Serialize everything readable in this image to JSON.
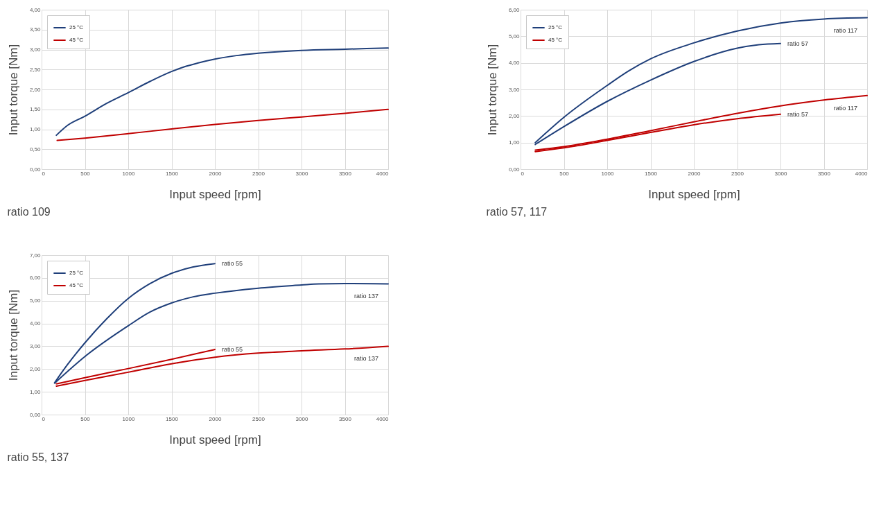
{
  "chart_data": [
    {
      "type": "line",
      "title": "ratio 109",
      "xlabel": "Input speed [rpm]",
      "ylabel": "Input torque [Nm]",
      "legend": "top left",
      "grid": true,
      "xlim": [
        0,
        4000
      ],
      "xticks": [
        0,
        500,
        1000,
        1500,
        2000,
        2500,
        3000,
        3500,
        4000
      ],
      "ylim": [
        0,
        4
      ],
      "yticks": [
        {
          "value": 0,
          "label": "0,00"
        },
        {
          "value": 0.5,
          "label": "0,50"
        },
        {
          "value": 1,
          "label": "1,00"
        },
        {
          "value": 1.5,
          "label": "1,50"
        },
        {
          "value": 2,
          "label": "2,00"
        },
        {
          "value": 2.5,
          "label": "2,50"
        },
        {
          "value": 3,
          "label": "3,00"
        },
        {
          "value": 3.5,
          "label": "3,50"
        },
        {
          "value": 4,
          "label": "4,00"
        }
      ],
      "series": [
        {
          "name": "25 °C",
          "color": "#1f3f7a",
          "x": [
            170,
            300,
            500,
            750,
            1000,
            1250,
            1500,
            1650,
            1800,
            2000,
            2250,
            2500,
            3000,
            3500,
            4000
          ],
          "values": [
            0.85,
            1.1,
            1.33,
            1.65,
            1.92,
            2.2,
            2.45,
            2.57,
            2.66,
            2.76,
            2.85,
            2.91,
            2.98,
            3.01,
            3.04
          ]
        },
        {
          "name": "45 °C",
          "color": "#c00000",
          "x": [
            180,
            500,
            1000,
            1500,
            2000,
            2500,
            3000,
            3500,
            4000
          ],
          "values": [
            0.72,
            0.78,
            0.89,
            1.01,
            1.12,
            1.22,
            1.31,
            1.4,
            1.5
          ]
        }
      ]
    },
    {
      "type": "line",
      "title": "ratio 57, 117",
      "xlabel": "Input speed [rpm]",
      "ylabel": "Input torque [Nm]",
      "legend": "top left",
      "grid": true,
      "xlim": [
        0,
        4000
      ],
      "xticks": [
        0,
        500,
        1000,
        1500,
        2000,
        2500,
        3000,
        3500,
        4000
      ],
      "ylim": [
        0,
        6
      ],
      "yticks": [
        {
          "value": 0,
          "label": "0,00"
        },
        {
          "value": 1,
          "label": "1,00"
        },
        {
          "value": 2,
          "label": "2,00"
        },
        {
          "value": 3,
          "label": "3,00"
        },
        {
          "value": 4,
          "label": "4,00"
        },
        {
          "value": 5,
          "label": "5,00"
        },
        {
          "value": 6,
          "label": "6,00"
        }
      ],
      "annotations": [
        {
          "text": "ratio 117",
          "x": 4000,
          "y": 5.7
        },
        {
          "text": "ratio 57",
          "x": 3000,
          "y": 4.73
        },
        {
          "text": "ratio 117",
          "x": 4000,
          "y": 2.77
        },
        {
          "text": "ratio 57",
          "x": 3000,
          "y": 2.07
        }
      ],
      "series": [
        {
          "name": "25 °C",
          "color": "#1f3f7a",
          "x": [
            170,
            500,
            1000,
            1250,
            1500,
            2000,
            2500,
            3000,
            3500,
            4000
          ],
          "values": [
            1.0,
            1.95,
            3.15,
            3.7,
            4.15,
            4.75,
            5.2,
            5.5,
            5.65,
            5.7
          ]
        },
        {
          "color": "#1f3f7a",
          "x": [
            170,
            500,
            1000,
            1500,
            2000,
            2500,
            2750,
            3000
          ],
          "values": [
            0.93,
            1.6,
            2.55,
            3.35,
            4.05,
            4.55,
            4.68,
            4.73
          ]
        },
        {
          "name": "45 °C",
          "color": "#c00000",
          "x": [
            170,
            500,
            1000,
            1500,
            2000,
            2500,
            3000,
            3500,
            4000
          ],
          "values": [
            0.72,
            0.85,
            1.13,
            1.45,
            1.78,
            2.1,
            2.38,
            2.6,
            2.77
          ]
        },
        {
          "color": "#c00000",
          "x": [
            170,
            500,
            1000,
            1500,
            2000,
            2500,
            3000
          ],
          "values": [
            0.66,
            0.8,
            1.08,
            1.38,
            1.67,
            1.9,
            2.07
          ]
        }
      ]
    },
    {
      "type": "line",
      "title": "ratio 55, 137",
      "xlabel": "Input speed [rpm]",
      "ylabel": "Input torque [Nm]",
      "legend": "top left",
      "grid": true,
      "xlim": [
        0,
        4000
      ],
      "xticks": [
        0,
        500,
        1000,
        1500,
        2000,
        2500,
        3000,
        3500,
        4000
      ],
      "ylim": [
        0,
        7
      ],
      "yticks": [
        {
          "value": 0,
          "label": "0,00"
        },
        {
          "value": 1,
          "label": "1,00"
        },
        {
          "value": 2,
          "label": "2,00"
        },
        {
          "value": 3,
          "label": "3,00"
        },
        {
          "value": 4,
          "label": "4,00"
        },
        {
          "value": 5,
          "label": "5,00"
        },
        {
          "value": 6,
          "label": "6,00"
        },
        {
          "value": 7,
          "label": "7,00"
        }
      ],
      "annotations": [
        {
          "text": "ratio 55",
          "x": 2000,
          "y": 6.63
        },
        {
          "text": "ratio 137",
          "x": 4000,
          "y": 5.74
        },
        {
          "text": "ratio 55",
          "x": 2000,
          "y": 2.86
        },
        {
          "text": "ratio 137",
          "x": 4000,
          "y": 3.0
        }
      ],
      "series": [
        {
          "name": "25 °C",
          "color": "#1f3f7a",
          "x": [
            150,
            300,
            500,
            750,
            1000,
            1250,
            1500,
            1750,
            2000
          ],
          "values": [
            1.4,
            2.2,
            3.15,
            4.2,
            5.1,
            5.75,
            6.2,
            6.48,
            6.63
          ]
        },
        {
          "color": "#1f3f7a",
          "x": [
            150,
            500,
            1000,
            1250,
            1500,
            1750,
            2000,
            2500,
            3000,
            3200,
            3500,
            4000
          ],
          "values": [
            1.38,
            2.55,
            3.9,
            4.5,
            4.9,
            5.17,
            5.33,
            5.55,
            5.69,
            5.74,
            5.75,
            5.74
          ]
        },
        {
          "name": "45 °C",
          "color": "#c00000",
          "x": [
            170,
            500,
            1000,
            1500,
            2000
          ],
          "values": [
            1.35,
            1.62,
            2.02,
            2.43,
            2.86
          ]
        },
        {
          "color": "#c00000",
          "x": [
            170,
            500,
            1000,
            1500,
            2000,
            2500,
            3000,
            3500,
            4000
          ],
          "values": [
            1.25,
            1.5,
            1.86,
            2.23,
            2.52,
            2.7,
            2.8,
            2.88,
            3.0
          ]
        }
      ]
    }
  ]
}
